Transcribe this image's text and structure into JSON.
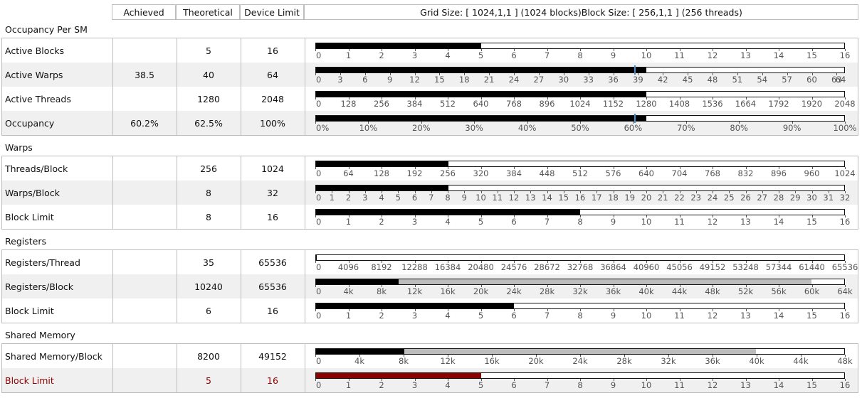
{
  "header": {
    "achieved": "Achieved",
    "theoretical": "Theoretical",
    "device_limit": "Device Limit",
    "grid_info": "Grid Size: [ 1024,1,1 ] (1024 blocks)Block Size: [ 256,1,1 ] (256 threads)"
  },
  "sections": [
    {
      "title": "Occupancy Per SM",
      "rows": [
        {
          "label": "Active Blocks",
          "achieved": "",
          "theoretical": "5",
          "limit": "16",
          "fill": 0.3125,
          "ticks": [
            "0",
            "1",
            "2",
            "3",
            "4",
            "5",
            "6",
            "7",
            "8",
            "9",
            "10",
            "11",
            "12",
            "13",
            "14",
            "15",
            "16"
          ]
        },
        {
          "label": "Active Warps",
          "achieved": "38.5",
          "theoretical": "40",
          "limit": "64",
          "fill": 0.625,
          "marker": 0.6016,
          "ticks": [
            "0",
            "3",
            "6",
            "9",
            "12",
            "15",
            "18",
            "21",
            "24",
            "27",
            "30",
            "33",
            "36",
            "39",
            "42",
            "45",
            "48",
            "51",
            "54",
            "57",
            "60",
            "63"
          ],
          "tick_step": 3,
          "tick_max": 64,
          "last_label": "64"
        },
        {
          "label": "Active Threads",
          "achieved": "",
          "theoretical": "1280",
          "limit": "2048",
          "fill": 0.625,
          "ticks": [
            "0",
            "128",
            "256",
            "384",
            "512",
            "640",
            "768",
            "896",
            "1024",
            "1152",
            "1280",
            "1408",
            "1536",
            "1664",
            "1792",
            "1920",
            "2048"
          ]
        },
        {
          "label": "Occupancy",
          "achieved": "60.2%",
          "theoretical": "62.5%",
          "limit": "100%",
          "fill": 0.625,
          "marker": 0.602,
          "ticks": [
            "0%",
            "10%",
            "20%",
            "30%",
            "40%",
            "50%",
            "60%",
            "70%",
            "80%",
            "90%",
            "100%"
          ]
        }
      ]
    },
    {
      "title": "Warps",
      "rows": [
        {
          "label": "Threads/Block",
          "achieved": "",
          "theoretical": "256",
          "limit": "1024",
          "fill": 0.25,
          "ticks": [
            "0",
            "64",
            "128",
            "192",
            "256",
            "320",
            "384",
            "448",
            "512",
            "576",
            "640",
            "704",
            "768",
            "832",
            "896",
            "960",
            "1024"
          ]
        },
        {
          "label": "Warps/Block",
          "achieved": "",
          "theoretical": "8",
          "limit": "32",
          "fill": 0.25,
          "ticks": [
            "0",
            "1",
            "2",
            "3",
            "4",
            "5",
            "6",
            "7",
            "8",
            "9",
            "10",
            "11",
            "12",
            "13",
            "14",
            "15",
            "16",
            "17",
            "18",
            "19",
            "20",
            "21",
            "22",
            "23",
            "24",
            "25",
            "26",
            "27",
            "28",
            "29",
            "30",
            "31",
            "32"
          ]
        },
        {
          "label": "Block Limit",
          "achieved": "",
          "theoretical": "8",
          "limit": "16",
          "fill": 0.5,
          "ticks": [
            "0",
            "1",
            "2",
            "3",
            "4",
            "5",
            "6",
            "7",
            "8",
            "9",
            "10",
            "11",
            "12",
            "13",
            "14",
            "15",
            "16"
          ]
        }
      ]
    },
    {
      "title": "Registers",
      "rows": [
        {
          "label": "Registers/Thread",
          "achieved": "",
          "theoretical": "35",
          "limit": "65536",
          "fill": 0.0005,
          "ticks": [
            "0",
            "4096",
            "8192",
            "12288",
            "16384",
            "20480",
            "24576",
            "28672",
            "32768",
            "36864",
            "40960",
            "45056",
            "49152",
            "53248",
            "57344",
            "61440",
            "65536"
          ]
        },
        {
          "label": "Registers/Block",
          "achieved": "",
          "theoretical": "10240",
          "limit": "65536",
          "fill": 0.15625,
          "gray": 0.9375,
          "ticks": [
            "0",
            "4k",
            "8k",
            "12k",
            "16k",
            "20k",
            "24k",
            "28k",
            "32k",
            "36k",
            "40k",
            "44k",
            "48k",
            "52k",
            "56k",
            "60k",
            "64k"
          ]
        },
        {
          "label": "Block Limit",
          "achieved": "",
          "theoretical": "6",
          "limit": "16",
          "fill": 0.375,
          "ticks": [
            "0",
            "1",
            "2",
            "3",
            "4",
            "5",
            "6",
            "7",
            "8",
            "9",
            "10",
            "11",
            "12",
            "13",
            "14",
            "15",
            "16"
          ]
        }
      ]
    },
    {
      "title": "Shared Memory",
      "rows": [
        {
          "label": "Shared Memory/Block",
          "achieved": "",
          "theoretical": "8200",
          "limit": "49152",
          "fill": 0.1668,
          "gray": 0.8333,
          "ticks": [
            "0",
            "4k",
            "8k",
            "12k",
            "16k",
            "20k",
            "24k",
            "28k",
            "32k",
            "36k",
            "40k",
            "44k",
            "48k"
          ]
        },
        {
          "label": "Block Limit",
          "achieved": "",
          "theoretical": "5",
          "limit": "16",
          "fill": 0.3125,
          "limiter": true,
          "ticks": [
            "0",
            "1",
            "2",
            "3",
            "4",
            "5",
            "6",
            "7",
            "8",
            "9",
            "10",
            "11",
            "12",
            "13",
            "14",
            "15",
            "16"
          ]
        }
      ]
    }
  ],
  "colors": {
    "fill": "#000000",
    "limiter": "#8b0000",
    "achieved_marker": "#3d8fd4",
    "unused": "#bcbcbc"
  }
}
